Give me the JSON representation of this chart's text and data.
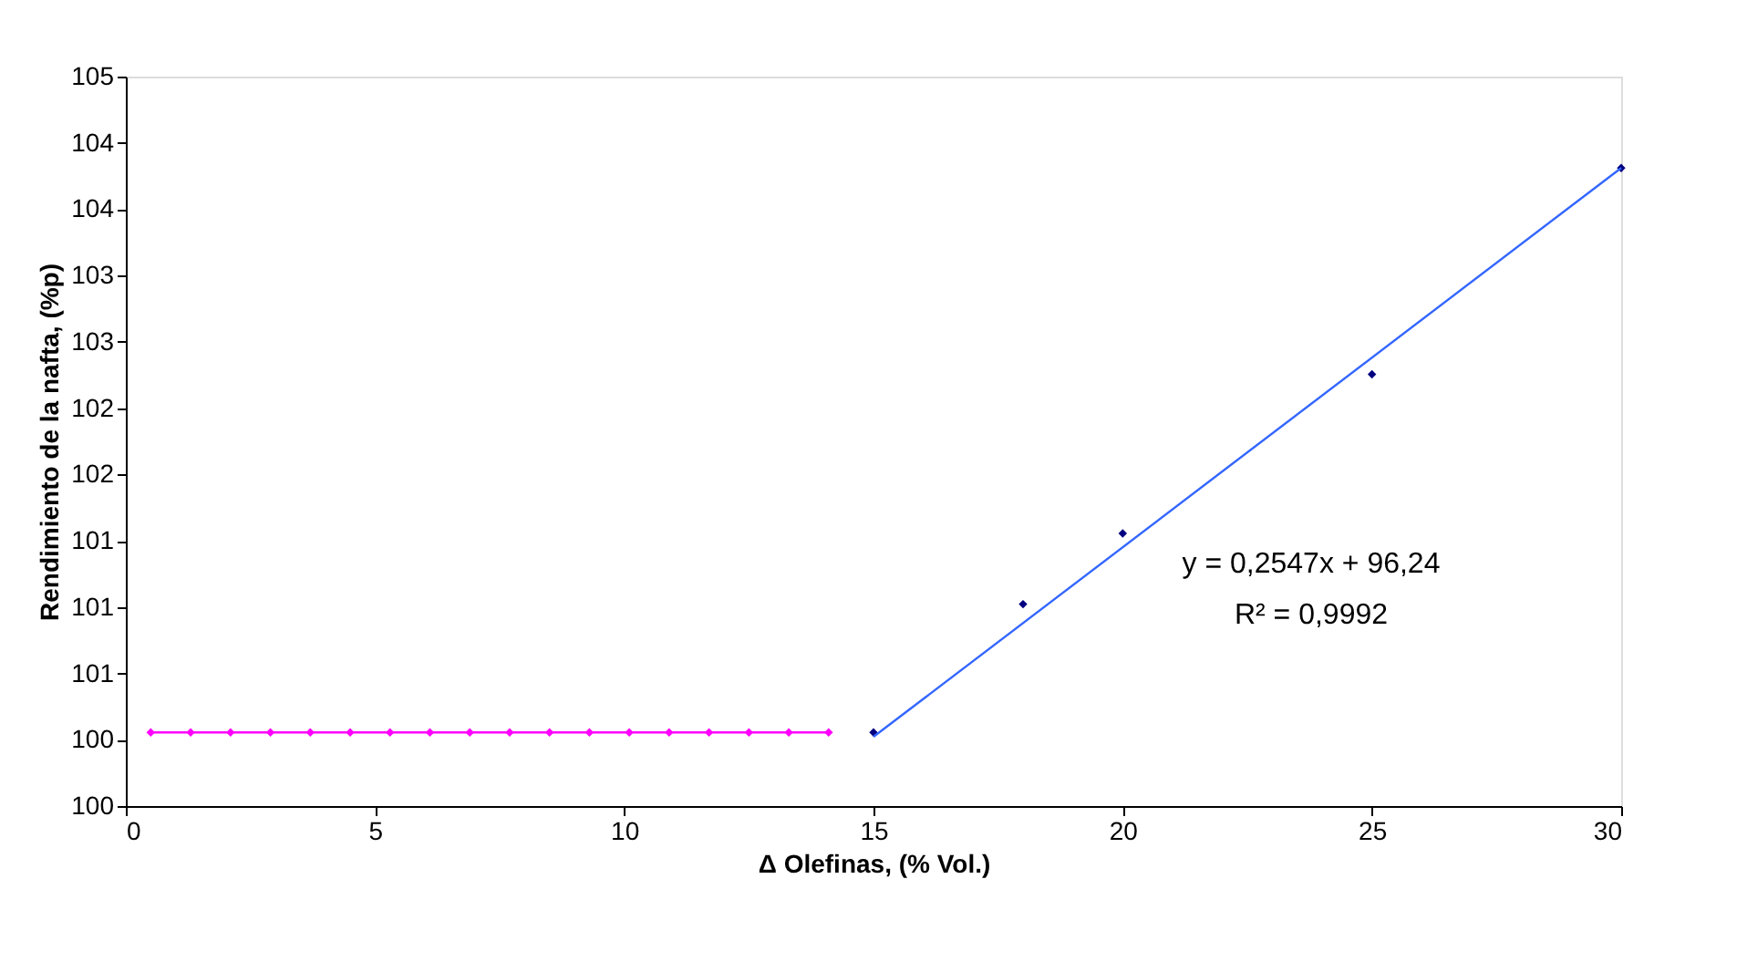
{
  "chart_data": {
    "type": "scatter",
    "xlabel": "Δ Olefinas, (% Vol.)",
    "ylabel": "Rendimiento de la nafta, (%p)",
    "xlim": [
      0,
      30
    ],
    "xticks": [
      0,
      5,
      10,
      15,
      20,
      25,
      30
    ],
    "ylim": [
      99.6,
      104.55
    ],
    "yticks": [
      {
        "value": 99.6,
        "label": "100"
      },
      {
        "value": 100.05,
        "label": "100"
      },
      {
        "value": 100.5,
        "label": "101"
      },
      {
        "value": 100.95,
        "label": "101"
      },
      {
        "value": 101.4,
        "label": "101"
      },
      {
        "value": 101.85,
        "label": "102"
      },
      {
        "value": 102.3,
        "label": "102"
      },
      {
        "value": 102.75,
        "label": "103"
      },
      {
        "value": 103.2,
        "label": "103"
      },
      {
        "value": 103.65,
        "label": "104"
      },
      {
        "value": 104.1,
        "label": "104"
      },
      {
        "value": 104.55,
        "label": "105"
      }
    ],
    "grid": false,
    "series": [
      {
        "type": "line",
        "marker": "diamond",
        "color": "#ff00ff",
        "x": [
          0.5,
          1.3,
          2.1,
          2.9,
          3.7,
          4.5,
          5.3,
          6.1,
          6.9,
          7.7,
          8.5,
          9.3,
          10.1,
          10.9,
          11.7,
          12.5,
          13.3,
          14.1
        ],
        "values": [
          100.1,
          100.1,
          100.1,
          100.1,
          100.1,
          100.1,
          100.1,
          100.1,
          100.1,
          100.1,
          100.1,
          100.1,
          100.1,
          100.1,
          100.1,
          100.1,
          100.1,
          100.1
        ]
      },
      {
        "marker": "diamond",
        "color": "#000080",
        "x": [
          15,
          18,
          20,
          25,
          30
        ],
        "values": [
          100.1,
          100.97,
          101.45,
          102.53,
          103.93
        ]
      },
      {
        "type": "line",
        "marker": "none",
        "color": "#3366ff",
        "x": [
          15,
          30
        ],
        "values": [
          100.07,
          103.93
        ]
      }
    ],
    "annotations": [
      "y = 0,2547x + 96,24",
      "R² = 0,9992"
    ]
  }
}
